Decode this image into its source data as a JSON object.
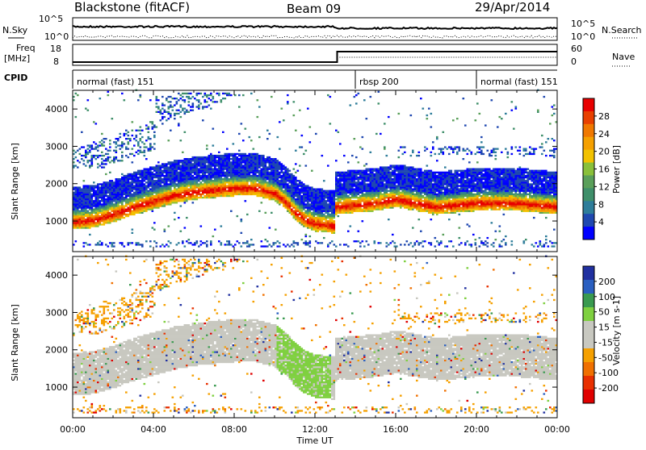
{
  "header": {
    "station": "Blackstone (fitACF)",
    "beam": "Beam 09",
    "date": "29/Apr/2014"
  },
  "top_panels": {
    "nsky_label": "N.Sky",
    "nsearch_label": "N.Search",
    "noise_ticks": [
      "10^5",
      "10^0"
    ],
    "freq_label_line1": "Freq",
    "freq_label_line2": "[MHz]",
    "freq_ticks": [
      "18",
      "8"
    ],
    "nave_label": "Nave",
    "nave_ticks": [
      "60",
      "0"
    ],
    "cpid_label": "CPID",
    "cpid_segments": [
      {
        "name": "normal (fast) 151",
        "start_h": 0,
        "end_h": 14
      },
      {
        "name": "rbsp 200",
        "start_h": 14,
        "end_h": 20
      },
      {
        "name": "normal (fast) 151",
        "start_h": 20,
        "end_h": 24
      }
    ]
  },
  "chart_data": [
    {
      "type": "heatmap",
      "title": "Power",
      "xlabel": "Time UT",
      "ylabel": "Slant Range [km]",
      "xlim_hours": [
        0,
        24
      ],
      "ylim_km": [
        180,
        4500
      ],
      "y_ticks": [
        "1000",
        "2000",
        "3000",
        "4000"
      ],
      "colorbar": {
        "label": "Power [dB]",
        "ticks": [
          "4",
          "8",
          "12",
          "16",
          "20",
          "24",
          "28"
        ],
        "range": [
          0,
          32
        ],
        "colors": [
          "#0000ff",
          "#1f48b0",
          "#2e7d9a",
          "#3f8f6a",
          "#5a9f5a",
          "#8ac03a",
          "#f2c200",
          "#f5a000",
          "#f07800",
          "#e84000",
          "#e80000"
        ]
      },
      "scatter_band": [
        {
          "t": 0.0,
          "r": 1000
        },
        {
          "t": 1.0,
          "r": 1050
        },
        {
          "t": 2.0,
          "r": 1200
        },
        {
          "t": 3.0,
          "r": 1400
        },
        {
          "t": 4.0,
          "r": 1550
        },
        {
          "t": 5.0,
          "r": 1700
        },
        {
          "t": 6.0,
          "r": 1800
        },
        {
          "t": 7.0,
          "r": 1850
        },
        {
          "t": 8.0,
          "r": 1900
        },
        {
          "t": 9.0,
          "r": 1900
        },
        {
          "t": 10.0,
          "r": 1750
        },
        {
          "t": 10.5,
          "r": 1550
        },
        {
          "t": 11.0,
          "r": 1250
        },
        {
          "t": 11.5,
          "r": 1050
        },
        {
          "t": 12.0,
          "r": 950
        },
        {
          "t": 12.9,
          "r": 900
        },
        {
          "t": 13.0,
          "r": 1400
        },
        {
          "t": 14.0,
          "r": 1450
        },
        {
          "t": 15.0,
          "r": 1500
        },
        {
          "t": 16.0,
          "r": 1600
        },
        {
          "t": 17.0,
          "r": 1500
        },
        {
          "t": 18.0,
          "r": 1400
        },
        {
          "t": 19.0,
          "r": 1450
        },
        {
          "t": 20.0,
          "r": 1500
        },
        {
          "t": 21.0,
          "r": 1500
        },
        {
          "t": 22.0,
          "r": 1500
        },
        {
          "t": 23.0,
          "r": 1450
        },
        {
          "t": 24.0,
          "r": 1400
        }
      ]
    },
    {
      "type": "heatmap",
      "title": "Velocity",
      "xlabel": "Time UT",
      "ylabel": "Slant Range [km]",
      "xlim_hours": [
        0,
        24
      ],
      "ylim_km": [
        180,
        4500
      ],
      "x_ticks": [
        "00:00",
        "04:00",
        "08:00",
        "12:00",
        "16:00",
        "20:00",
        "00:00"
      ],
      "y_ticks": [
        "1000",
        "2000",
        "3000",
        "4000"
      ],
      "colorbar": {
        "label": "Velocity [m s-1]",
        "ticks": [
          "200",
          "100",
          "50",
          "15",
          "-15",
          "-50",
          "-100",
          "-200"
        ],
        "colors": [
          "#2030a0",
          "#2a5fc0",
          "#3a9a50",
          "#7fd040",
          "#c8c8c0",
          "#c8c8c0",
          "#f5a000",
          "#f07000",
          "#e83000",
          "#e00000"
        ]
      }
    }
  ]
}
